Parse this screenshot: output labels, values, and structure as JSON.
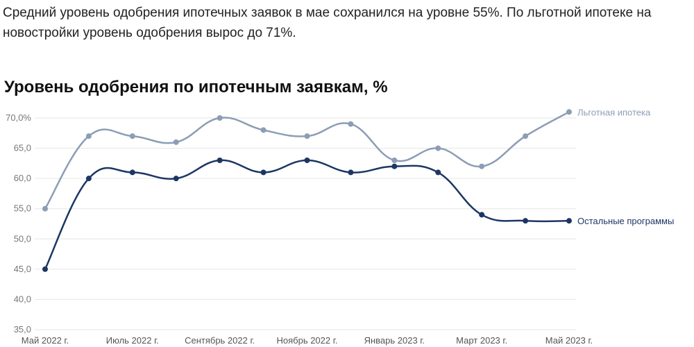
{
  "intro_text": "Средний уровень одобрения ипотечных заявок в мае сохранился на уровне 55%. По льготной ипотеке на новостройки уровень одобрения вырос до 71%.",
  "chart_data": {
    "type": "line",
    "title": "Уровень одобрения по ипотечным заявкам, %",
    "xlabel": "",
    "ylabel": "",
    "ylim": [
      35,
      70
    ],
    "y_ticks": [
      "70,0%",
      "65,0",
      "60,0",
      "55,0",
      "50,0",
      "45,0",
      "40,0",
      "35,0"
    ],
    "x_tick_labels": [
      "Май 2022 г.",
      "Июль 2022 г.",
      "Сентябрь 2022 г.",
      "Ноябрь 2022 г.",
      "Январь 2023 г.",
      "Март 2023 г.",
      "Май 2023 г."
    ],
    "x_tick_indices": [
      0,
      2,
      4,
      6,
      8,
      10,
      12
    ],
    "grid": true,
    "legend": "labels at line ends (right)",
    "series": [
      {
        "name": "Льготная ипотека",
        "color": "#8c9db5",
        "values": [
          55,
          67,
          67,
          66,
          70,
          68,
          67,
          69,
          63,
          65,
          62,
          67,
          71
        ]
      },
      {
        "name": "Остальные программы",
        "color": "#1c3664",
        "values": [
          45,
          60,
          61,
          60,
          63,
          61,
          63,
          61,
          62,
          61,
          54,
          53,
          53
        ]
      }
    ]
  }
}
